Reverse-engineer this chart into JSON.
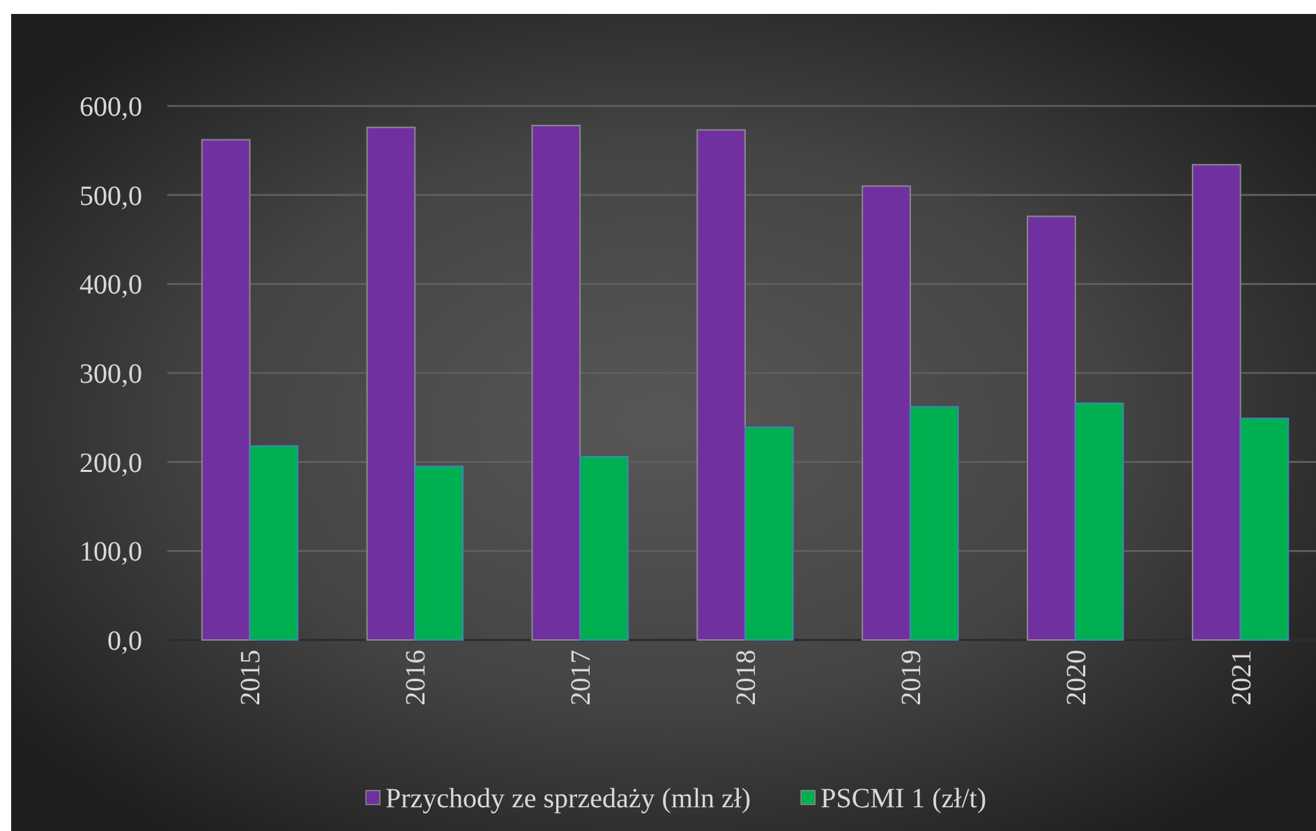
{
  "chart_data": {
    "type": "bar",
    "categories": [
      "2015",
      "2016",
      "2017",
      "2018",
      "2019",
      "2020",
      "2021"
    ],
    "series": [
      {
        "name": "Przychody ze sprzedaży (mln zł)",
        "color": "#7030a0",
        "values": [
          562,
          576,
          578,
          573,
          510,
          476,
          534
        ]
      },
      {
        "name": "PSCMI 1 (zł/t)",
        "color": "#00b050",
        "values": [
          218,
          195,
          206,
          239,
          262,
          266,
          249
        ]
      }
    ],
    "ylim": [
      0,
      600
    ],
    "yticks": [
      {
        "value": 0,
        "label": "0,0"
      },
      {
        "value": 100,
        "label": "100,0"
      },
      {
        "value": 200,
        "label": "200,0"
      },
      {
        "value": 300,
        "label": "300,0"
      },
      {
        "value": 400,
        "label": "400,0"
      },
      {
        "value": 500,
        "label": "500,0"
      },
      {
        "value": 600,
        "label": "600,0"
      }
    ],
    "grid": true,
    "legend": "bottom"
  }
}
